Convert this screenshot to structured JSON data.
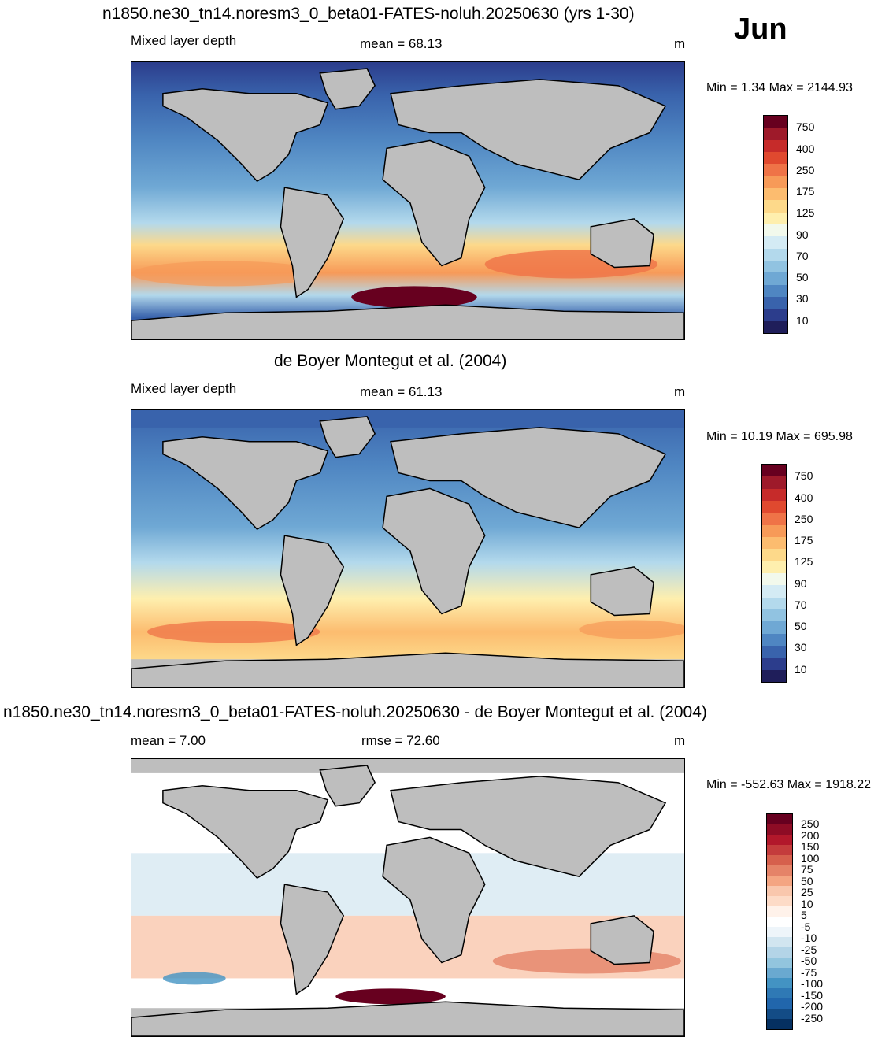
{
  "month": "Jun",
  "units": "m",
  "panels": [
    {
      "id": "model",
      "title": "n1850.ne30_tn14.noresm3_0_beta01-FATES-noluh.20250630 (yrs 1-30)",
      "variable": "Mixed layer depth",
      "stat": "mean =  68.13",
      "units": "m",
      "minmax": "Min =   1.34 Max = 2144.93",
      "colorbar": {
        "colors": [
          "#67001f",
          "#9e1a2a",
          "#c62b2a",
          "#e0492f",
          "#ef7347",
          "#f79a58",
          "#fcbc6f",
          "#fdd98a",
          "#feefae",
          "#f2f9ec",
          "#d4ebf4",
          "#b3d9ec",
          "#91c3e1",
          "#6fa8d4",
          "#4f86c2",
          "#3963ac",
          "#2c3d8c",
          "#1f1e5a"
        ],
        "labels": [
          "750",
          "400",
          "250",
          "175",
          "125",
          "90",
          "70",
          "50",
          "30",
          "10"
        ]
      }
    },
    {
      "id": "obs",
      "title": "de Boyer Montegut et al. (2004)",
      "variable": "Mixed layer depth",
      "stat": "mean =  61.13",
      "units": "m",
      "minmax": "Min =  10.19 Max = 695.98",
      "colorbar": {
        "colors": [
          "#67001f",
          "#9e1a2a",
          "#c62b2a",
          "#e0492f",
          "#ef7347",
          "#f79a58",
          "#fcbc6f",
          "#fdd98a",
          "#feefae",
          "#f2f9ec",
          "#d4ebf4",
          "#b3d9ec",
          "#91c3e1",
          "#6fa8d4",
          "#4f86c2",
          "#3963ac",
          "#2c3d8c",
          "#1f1e5a"
        ],
        "labels": [
          "750",
          "400",
          "250",
          "175",
          "125",
          "90",
          "70",
          "50",
          "30",
          "10"
        ]
      }
    },
    {
      "id": "diff",
      "title": "n1850.ne30_tn14.noresm3_0_beta01-FATES-noluh.20250630 - de Boyer Montegut et al. (2004)",
      "stat_left": "mean =   7.00",
      "stat": "rmse =  72.60",
      "units": "m",
      "minmax": "Min = -552.63 Max = 1918.22",
      "colorbar": {
        "colors": [
          "#67001f",
          "#8e0c25",
          "#b2182b",
          "#c43c3c",
          "#d6604d",
          "#e58368",
          "#f4a582",
          "#f9c7ad",
          "#fddbc7",
          "#fff2ea",
          "#ffffff",
          "#eef5fa",
          "#d1e5f0",
          "#b3d4e7",
          "#92c5de",
          "#6aa9d0",
          "#4393c3",
          "#2f79b5",
          "#2166ac",
          "#134c86",
          "#053061"
        ],
        "labels": [
          "250",
          "200",
          "150",
          "100",
          "75",
          "50",
          "25",
          "10",
          "5",
          "-5",
          "-10",
          "-25",
          "-50",
          "-75",
          "-100",
          "-150",
          "-200",
          "-250"
        ]
      }
    }
  ],
  "colors": {
    "land": "#bebebe",
    "coast": "#000000"
  }
}
